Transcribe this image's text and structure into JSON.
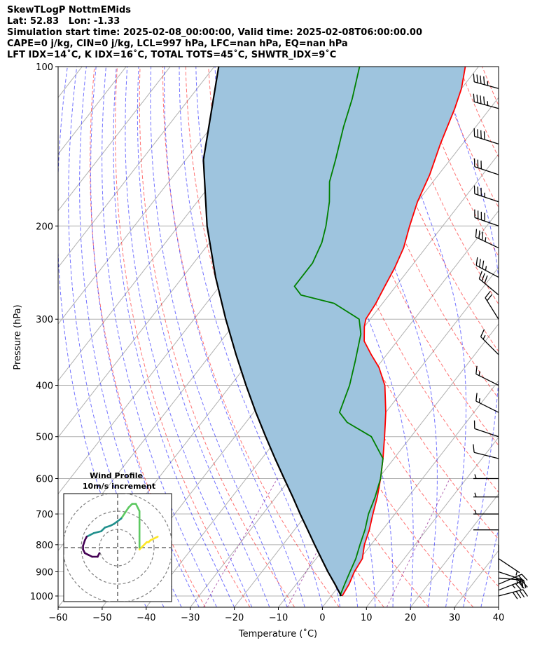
{
  "header": {
    "lines": [
      "SkewTLogP NottmEMids",
      "Lat: 52.83   Lon: -1.33",
      "Simulation start time: 2025-02-08_00:00:00, Valid time: 2025-02-08T06:00:00.00",
      "CAPE=0 j/kg, CIN=0 j/kg, LCL=997 hPa, LFC=nan hPa, EQ=nan hPa",
      "LFT IDX=14˚C, K IDX=16˚C, TOTAL TOTS=45˚C, SHWTR_IDX=9˚C"
    ]
  },
  "chart_data": {
    "type": "line",
    "xlabel": "Temperature (˚C)",
    "ylabel": "Pressure (hPa)",
    "xlim": [
      -60,
      40
    ],
    "ylim": [
      1050,
      100
    ],
    "yscale": "log",
    "x_ticks": [
      -60,
      -50,
      -40,
      -30,
      -20,
      -10,
      0,
      10,
      20,
      30,
      40
    ],
    "x_tick_labels": [
      "−60",
      "−50",
      "−40",
      "−30",
      "−20",
      "−10",
      "0",
      "10",
      "20",
      "30",
      "40"
    ],
    "y_ticks": [
      1000,
      900,
      800,
      700,
      600,
      500,
      400,
      300,
      200,
      100
    ],
    "y_tick_labels": [
      "1000",
      "900",
      "800",
      "700",
      "600",
      "500",
      "400",
      "300",
      "200",
      "100"
    ],
    "grid": true,
    "series": [
      {
        "role": "temperature",
        "color": "#ff0000",
        "points": [
          [
            1000,
            2.5
          ],
          [
            950,
            2.0
          ],
          [
            900,
            1.0
          ],
          [
            850,
            0.5
          ],
          [
            800,
            -1.5
          ],
          [
            750,
            -3.0
          ],
          [
            700,
            -5.0
          ],
          [
            650,
            -7.0
          ],
          [
            600,
            -9.5
          ],
          [
            550,
            -12.5
          ],
          [
            500,
            -16.0
          ],
          [
            450,
            -20.0
          ],
          [
            400,
            -25.0
          ],
          [
            370,
            -29.5
          ],
          [
            350,
            -33.5
          ],
          [
            330,
            -37.5
          ],
          [
            310,
            -40.0
          ],
          [
            300,
            -41.0
          ],
          [
            280,
            -41.5
          ],
          [
            260,
            -42.5
          ],
          [
            240,
            -43.5
          ],
          [
            220,
            -45.0
          ],
          [
            200,
            -47.5
          ],
          [
            180,
            -50.0
          ],
          [
            160,
            -52.0
          ],
          [
            140,
            -55.0
          ],
          [
            120,
            -58.0
          ],
          [
            110,
            -60.0
          ],
          [
            100,
            -63.0
          ]
        ]
      },
      {
        "role": "dewpoint",
        "color": "#008000",
        "points": [
          [
            1000,
            2.0
          ],
          [
            950,
            1.0
          ],
          [
            900,
            0.0
          ],
          [
            850,
            -1.0
          ],
          [
            800,
            -2.5
          ],
          [
            750,
            -4.0
          ],
          [
            700,
            -6.0
          ],
          [
            650,
            -7.5
          ],
          [
            600,
            -9.5
          ],
          [
            550,
            -12.5
          ],
          [
            500,
            -19.0
          ],
          [
            470,
            -27.0
          ],
          [
            450,
            -30.5
          ],
          [
            400,
            -33.0
          ],
          [
            360,
            -36.0
          ],
          [
            320,
            -39.5
          ],
          [
            300,
            -42.5
          ],
          [
            280,
            -51.0
          ],
          [
            270,
            -60.0
          ],
          [
            260,
            -63.0
          ],
          [
            235,
            -63.0
          ],
          [
            215,
            -64.5
          ],
          [
            200,
            -66.5
          ],
          [
            180,
            -70.0
          ],
          [
            165,
            -73.5
          ],
          [
            150,
            -76.0
          ],
          [
            130,
            -80.0
          ],
          [
            115,
            -83.0
          ],
          [
            100,
            -87.0
          ]
        ]
      },
      {
        "role": "parcel",
        "color": "#000000",
        "points": [
          [
            1000,
            2.3
          ],
          [
            950,
            -1.2
          ],
          [
            900,
            -5.0
          ],
          [
            850,
            -8.8
          ],
          [
            800,
            -12.8
          ],
          [
            750,
            -17.0
          ],
          [
            700,
            -21.5
          ],
          [
            650,
            -26.2
          ],
          [
            600,
            -31.4
          ],
          [
            550,
            -37.0
          ],
          [
            500,
            -43.0
          ],
          [
            450,
            -49.5
          ],
          [
            400,
            -56.5
          ],
          [
            350,
            -64.2
          ],
          [
            300,
            -72.8
          ],
          [
            250,
            -82.5
          ],
          [
            200,
            -93.5
          ],
          [
            150,
            -106.0
          ],
          [
            100,
            -119.0
          ]
        ]
      }
    ],
    "reference_lines": {
      "isotherms_every_C": 10,
      "dry_adiabats_color": "#ff0000",
      "moist_adiabats_color": "#0000ff",
      "mixing_ratio_color": "#800080",
      "shading_color": "#9ec4de"
    },
    "wind_barbs": {
      "pressure": [
        1000,
        975,
        950,
        925,
        900,
        850,
        800,
        750,
        700,
        650,
        600,
        550,
        500,
        450,
        400,
        350,
        300,
        270,
        250,
        220,
        200,
        180,
        160,
        140,
        120,
        110
      ],
      "u": [
        -19,
        -18,
        -14,
        -12,
        -6,
        -3,
        0,
        1,
        2,
        2,
        3,
        4,
        6,
        6,
        8,
        6,
        5,
        12,
        17,
        17,
        20,
        18,
        15,
        19,
        22,
        22
      ],
      "v": [
        -5,
        -7,
        -6,
        1,
        2,
        2,
        1,
        0,
        0,
        0,
        0,
        -1,
        -2,
        -3,
        -4,
        -6,
        -8,
        -10,
        -9,
        -8,
        -7,
        -6,
        -5,
        -6,
        -6,
        -6
      ]
    }
  },
  "hodograph": {
    "title_line1": "Wind Profile",
    "title_line2": "10m/s increment",
    "ring_step_ms": 10,
    "colors": [
      "#440154",
      "#21908d",
      "#5ec962",
      "#fde725"
    ],
    "track": [
      [
        22,
        6
      ],
      [
        20,
        5
      ],
      [
        18,
        4
      ],
      [
        17,
        3
      ],
      [
        16,
        3
      ],
      [
        14,
        1
      ],
      [
        13,
        0
      ],
      [
        12,
        -1
      ],
      [
        12,
        0
      ],
      [
        12,
        6
      ],
      [
        12,
        14
      ],
      [
        12,
        20
      ],
      [
        10,
        24
      ],
      [
        8,
        24
      ],
      [
        6,
        22
      ],
      [
        4,
        19
      ],
      [
        2,
        16
      ],
      [
        -2,
        13
      ],
      [
        -4,
        12
      ],
      [
        -7,
        11
      ],
      [
        -9,
        9
      ],
      [
        -13,
        8
      ],
      [
        -15,
        7
      ],
      [
        -17,
        6
      ],
      [
        -18,
        4
      ],
      [
        -19,
        1
      ],
      [
        -19,
        -1
      ],
      [
        -18,
        -3
      ],
      [
        -16,
        -4
      ],
      [
        -14,
        -5
      ],
      [
        -11,
        -5
      ],
      [
        -10,
        -3
      ]
    ]
  }
}
